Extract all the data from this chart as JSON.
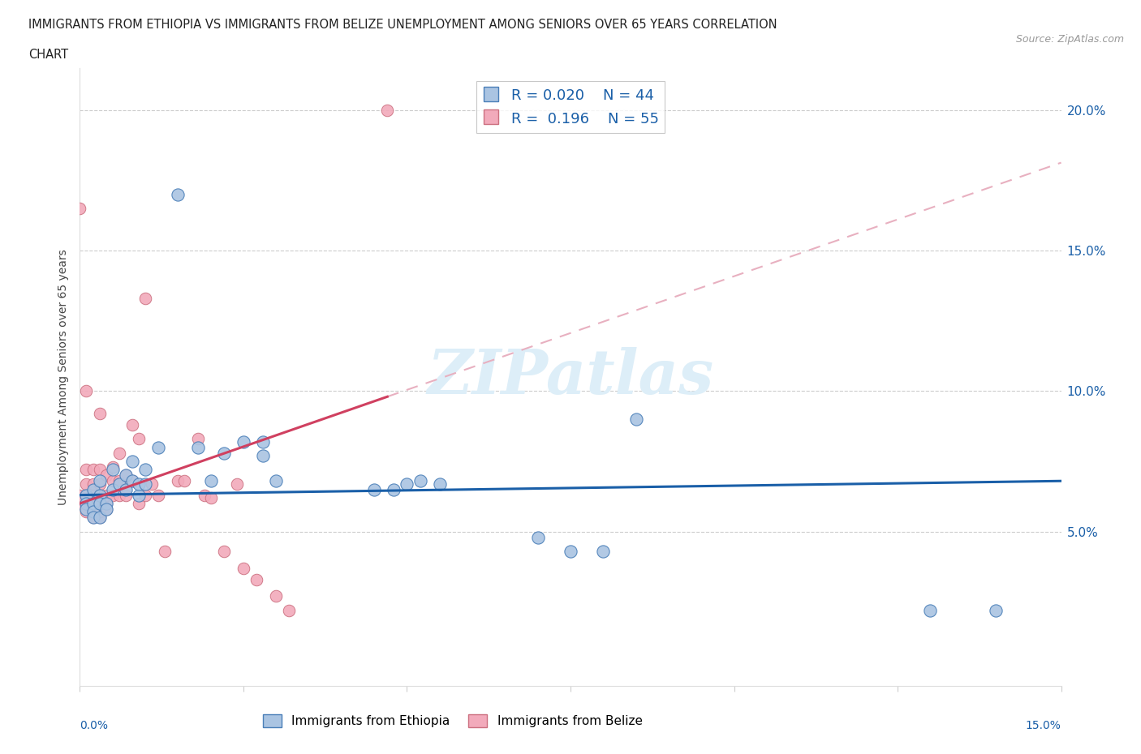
{
  "title_line1": "IMMIGRANTS FROM ETHIOPIA VS IMMIGRANTS FROM BELIZE UNEMPLOYMENT AMONG SENIORS OVER 65 YEARS CORRELATION",
  "title_line2": "CHART",
  "source": "Source: ZipAtlas.com",
  "ylabel": "Unemployment Among Seniors over 65 years",
  "legend_ethiopia": "Immigrants from Ethiopia",
  "legend_belize": "Immigrants from Belize",
  "r_ethiopia": "0.020",
  "n_ethiopia": "44",
  "r_belize": "0.196",
  "n_belize": "55",
  "color_ethiopia": "#aac4e2",
  "color_belize": "#f2aabb",
  "trendline_ethiopia": "#1a5fa8",
  "trendline_belize_solid": "#d04060",
  "trendline_belize_dashed": "#e8b0c0",
  "watermark": "ZIPatlas",
  "watermark_color": "#ddeef8",
  "xlim": [
    0.0,
    0.15
  ],
  "ylim": [
    -0.005,
    0.215
  ],
  "yticks": [
    0.05,
    0.1,
    0.15,
    0.2
  ],
  "ytick_labels": [
    "5.0%",
    "10.0%",
    "15.0%",
    "20.0%"
  ],
  "ethiopia_x": [
    0.001,
    0.001,
    0.001,
    0.002,
    0.002,
    0.002,
    0.002,
    0.003,
    0.003,
    0.003,
    0.003,
    0.004,
    0.004,
    0.005,
    0.005,
    0.006,
    0.007,
    0.007,
    0.008,
    0.008,
    0.009,
    0.009,
    0.01,
    0.01,
    0.012,
    0.015,
    0.018,
    0.02,
    0.022,
    0.025,
    0.028,
    0.028,
    0.03,
    0.045,
    0.048,
    0.05,
    0.052,
    0.055,
    0.07,
    0.075,
    0.08,
    0.085,
    0.13,
    0.14
  ],
  "ethiopia_y": [
    0.063,
    0.06,
    0.058,
    0.065,
    0.06,
    0.057,
    0.055,
    0.068,
    0.063,
    0.06,
    0.055,
    0.06,
    0.058,
    0.065,
    0.072,
    0.067,
    0.07,
    0.065,
    0.075,
    0.068,
    0.063,
    0.067,
    0.067,
    0.072,
    0.08,
    0.17,
    0.08,
    0.068,
    0.078,
    0.082,
    0.082,
    0.077,
    0.068,
    0.065,
    0.065,
    0.067,
    0.068,
    0.067,
    0.048,
    0.043,
    0.043,
    0.09,
    0.022,
    0.022
  ],
  "belize_x": [
    0.0,
    0.0,
    0.0,
    0.001,
    0.001,
    0.001,
    0.001,
    0.001,
    0.001,
    0.002,
    0.002,
    0.002,
    0.002,
    0.002,
    0.002,
    0.003,
    0.003,
    0.003,
    0.003,
    0.003,
    0.003,
    0.003,
    0.004,
    0.004,
    0.004,
    0.004,
    0.005,
    0.005,
    0.005,
    0.006,
    0.006,
    0.006,
    0.007,
    0.007,
    0.008,
    0.008,
    0.009,
    0.009,
    0.01,
    0.01,
    0.011,
    0.012,
    0.013,
    0.015,
    0.016,
    0.018,
    0.019,
    0.02,
    0.022,
    0.024,
    0.025,
    0.027,
    0.03,
    0.032,
    0.047
  ],
  "belize_y": [
    0.06,
    0.063,
    0.165,
    0.057,
    0.06,
    0.063,
    0.067,
    0.072,
    0.1,
    0.055,
    0.058,
    0.06,
    0.063,
    0.067,
    0.072,
    0.055,
    0.057,
    0.06,
    0.063,
    0.067,
    0.072,
    0.092,
    0.058,
    0.06,
    0.063,
    0.07,
    0.063,
    0.068,
    0.073,
    0.063,
    0.068,
    0.078,
    0.063,
    0.07,
    0.068,
    0.088,
    0.06,
    0.083,
    0.063,
    0.133,
    0.067,
    0.063,
    0.043,
    0.068,
    0.068,
    0.083,
    0.063,
    0.062,
    0.043,
    0.067,
    0.037,
    0.033,
    0.027,
    0.022,
    0.2
  ],
  "belize_trendline_x0": 0.0,
  "belize_trendline_y0": 0.06,
  "belize_trendline_x1": 0.047,
  "belize_trendline_y1": 0.098,
  "ethiopia_trendline_x0": 0.0,
  "ethiopia_trendline_y0": 0.063,
  "ethiopia_trendline_x1": 0.15,
  "ethiopia_trendline_y1": 0.068
}
